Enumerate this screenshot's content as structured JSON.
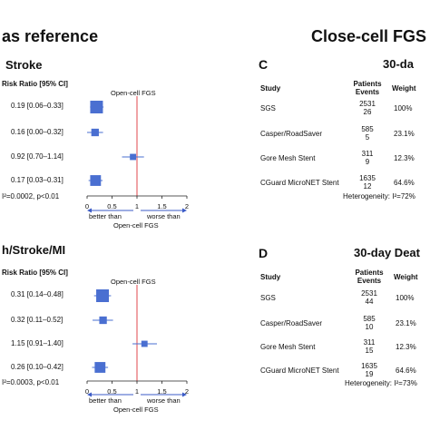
{
  "headings": {
    "left": "as reference",
    "right": "Close-cell FGS"
  },
  "panels": [
    {
      "letter": "",
      "title": "Stroke",
      "col_header": "Risk Ratio [95% CI]",
      "axis_title": "Open-cell FGS",
      "ci_labels": [
        "0.19 [0.06–0.33]",
        "0.16 [0.00–0.32]",
        "0.92 [0.70–1.14]",
        "0.17 [0.03–0.31]"
      ],
      "heterogeneity": "I²=0.0002, p<0.01",
      "ticks": [
        "0",
        "0.5",
        "1",
        "1.5",
        "2"
      ],
      "better": "better than",
      "worse": "worse than",
      "below_axis": "Open-cell FGS"
    },
    {
      "letter": "",
      "title": "h/Stroke/MI",
      "col_header": "Risk Ratio [95% CI]",
      "axis_title": "Open-cell FGS",
      "ci_labels": [
        "0.31 [0.14–0.48]",
        "0.32 [0.11–0.52]",
        "1.15 [0.91–1.40]",
        "0.26 [0.10–0.42]"
      ],
      "heterogeneity": "I²=0.0003, p<0.01",
      "ticks": [
        "0",
        "0.5",
        "1",
        "1.5",
        "2"
      ],
      "better": "better than",
      "worse": "worse than",
      "below_axis": "Open-cell FGS"
    },
    {
      "letter": "C",
      "title": "30-da",
      "headers": {
        "study": "Study",
        "patients": "Patients",
        "events": "Events",
        "weight": "Weight"
      },
      "rows": [
        {
          "study": "SGS",
          "patients": "2531",
          "events": "26",
          "weight": "100%"
        },
        {
          "study": "Casper/RoadSaver",
          "patients": "585",
          "events": "5",
          "weight": "23.1%"
        },
        {
          "study": "Gore Mesh Stent",
          "patients": "311",
          "events": "9",
          "weight": "12.3%"
        },
        {
          "study": "CGuard MicroNET Stent",
          "patients": "1635",
          "events": "12",
          "weight": "64.6%"
        }
      ],
      "heterogeneity": "Heterogeneity: I²=72%"
    },
    {
      "letter": "D",
      "title": "30-day Deat",
      "headers": {
        "study": "Study",
        "patients": "Patients",
        "events": "Events",
        "weight": "Weight"
      },
      "rows": [
        {
          "study": "SGS",
          "patients": "2531",
          "events": "44",
          "weight": "100%"
        },
        {
          "study": "Casper/RoadSaver",
          "patients": "585",
          "events": "10",
          "weight": "23.1%"
        },
        {
          "study": "Gore Mesh Stent",
          "patients": "311",
          "events": "15",
          "weight": "12.3%"
        },
        {
          "study": "CGuard MicroNET Stent",
          "patients": "1635",
          "events": "19",
          "weight": "64.6%"
        }
      ],
      "heterogeneity": "Heterogeneity: I²=73%"
    }
  ],
  "chart_data": [
    {
      "type": "forest",
      "title": "Stroke",
      "xlabel": "Open-cell FGS",
      "xlim": [
        0,
        2
      ],
      "reference_line": 1,
      "series": [
        {
          "values": [
            0.19,
            0.16,
            0.92,
            0.17
          ],
          "lower": [
            0.06,
            0.0,
            0.7,
            0.03
          ],
          "upper": [
            0.33,
            0.32,
            1.14,
            0.31
          ],
          "weights": [
            100,
            23.1,
            12.3,
            64.6
          ]
        }
      ]
    },
    {
      "type": "forest",
      "title": "h/Stroke/MI",
      "xlabel": "Open-cell FGS",
      "xlim": [
        0,
        2
      ],
      "reference_line": 1,
      "series": [
        {
          "values": [
            0.31,
            0.32,
            1.15,
            0.26
          ],
          "lower": [
            0.14,
            0.11,
            0.91,
            0.1
          ],
          "upper": [
            0.48,
            0.52,
            1.4,
            0.42
          ],
          "weights": [
            100,
            23.1,
            12.3,
            64.6
          ]
        }
      ]
    }
  ],
  "colors": {
    "marker": "#4a6fd1",
    "ref_line": "#e0474c",
    "axis": "#222222",
    "arrow": "#3b5bc7"
  }
}
